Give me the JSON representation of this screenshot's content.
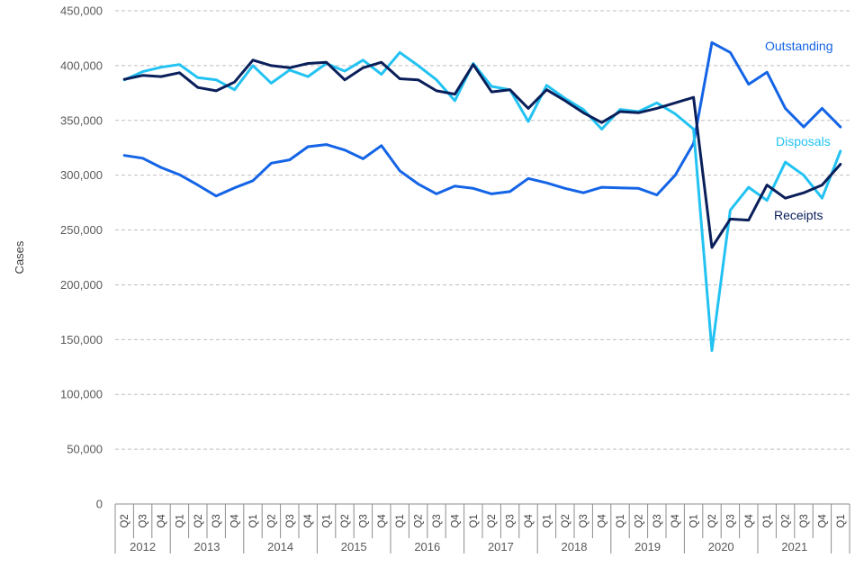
{
  "chart_data": {
    "type": "line",
    "title": "",
    "xlabel": "",
    "ylabel": "Cases",
    "ylim": [
      0,
      450000
    ],
    "yticks": [
      0,
      50000,
      100000,
      150000,
      200000,
      250000,
      300000,
      350000,
      400000,
      450000
    ],
    "ytick_labels": [
      "0",
      "50,000",
      "100,000",
      "150,000",
      "200,000",
      "250,000",
      "300,000",
      "350,000",
      "400,000",
      "450,000"
    ],
    "grid": "horizontal dashed",
    "x": [
      "Q2",
      "Q3",
      "Q4",
      "Q1",
      "Q2",
      "Q3",
      "Q4",
      "Q1",
      "Q2",
      "Q3",
      "Q4",
      "Q1",
      "Q2",
      "Q3",
      "Q4",
      "Q1",
      "Q2",
      "Q3",
      "Q4",
      "Q1",
      "Q2",
      "Q3",
      "Q4",
      "Q1",
      "Q2",
      "Q3",
      "Q4",
      "Q1",
      "Q2",
      "Q3",
      "Q4",
      "Q1",
      "Q2",
      "Q3",
      "Q4",
      "Q1",
      "Q2",
      "Q3",
      "Q4",
      "Q1"
    ],
    "year_groups": [
      {
        "label": "2012",
        "count": 3
      },
      {
        "label": "2013",
        "count": 4
      },
      {
        "label": "2014",
        "count": 4
      },
      {
        "label": "2015",
        "count": 4
      },
      {
        "label": "2016",
        "count": 4
      },
      {
        "label": "2017",
        "count": 4
      },
      {
        "label": "2018",
        "count": 4
      },
      {
        "label": "2019",
        "count": 4
      },
      {
        "label": "2020",
        "count": 4
      },
      {
        "label": "2021",
        "count": 4
      },
      {
        "label": "",
        "count": 1
      }
    ],
    "series": [
      {
        "name": "Outstanding",
        "color": "#1464E6",
        "values": [
          318000,
          315500,
          307000,
          300500,
          291000,
          281000,
          288500,
          295000,
          311000,
          314000,
          326000,
          328000,
          323000,
          315000,
          327000,
          304000,
          292000,
          283000,
          290000,
          288000,
          283000,
          285000,
          297000,
          293000,
          288000,
          284000,
          289000,
          288500,
          288000,
          282000,
          300000,
          329000,
          421000,
          412000,
          383000,
          394000,
          361000,
          344000,
          361000,
          344000
        ]
      },
      {
        "name": "Disposals",
        "color": "#22C2F2",
        "values": [
          387000,
          394500,
          398500,
          401000,
          389000,
          387000,
          378000,
          400000,
          384000,
          396000,
          390000,
          402000,
          395000,
          405000,
          392000,
          412000,
          400000,
          387000,
          368000,
          402000,
          381000,
          378000,
          349000,
          382000,
          370000,
          360000,
          342000,
          360000,
          358000,
          366000,
          356000,
          342000,
          140000,
          268000,
          289000,
          277000,
          312000,
          300000,
          279000,
          322000
        ]
      },
      {
        "name": "Receipts",
        "color": "#0A1F5A",
        "values": [
          387500,
          391000,
          390000,
          393500,
          380000,
          377000,
          385000,
          405000,
          400000,
          398000,
          402000,
          403000,
          387000,
          398000,
          403000,
          388000,
          387000,
          377000,
          374000,
          401000,
          376000,
          378000,
          361000,
          378000,
          368000,
          357000,
          348000,
          358000,
          357000,
          361000,
          366000,
          371000,
          234000,
          260000,
          259000,
          291000,
          279000,
          284000,
          291000,
          310000
        ]
      }
    ]
  }
}
